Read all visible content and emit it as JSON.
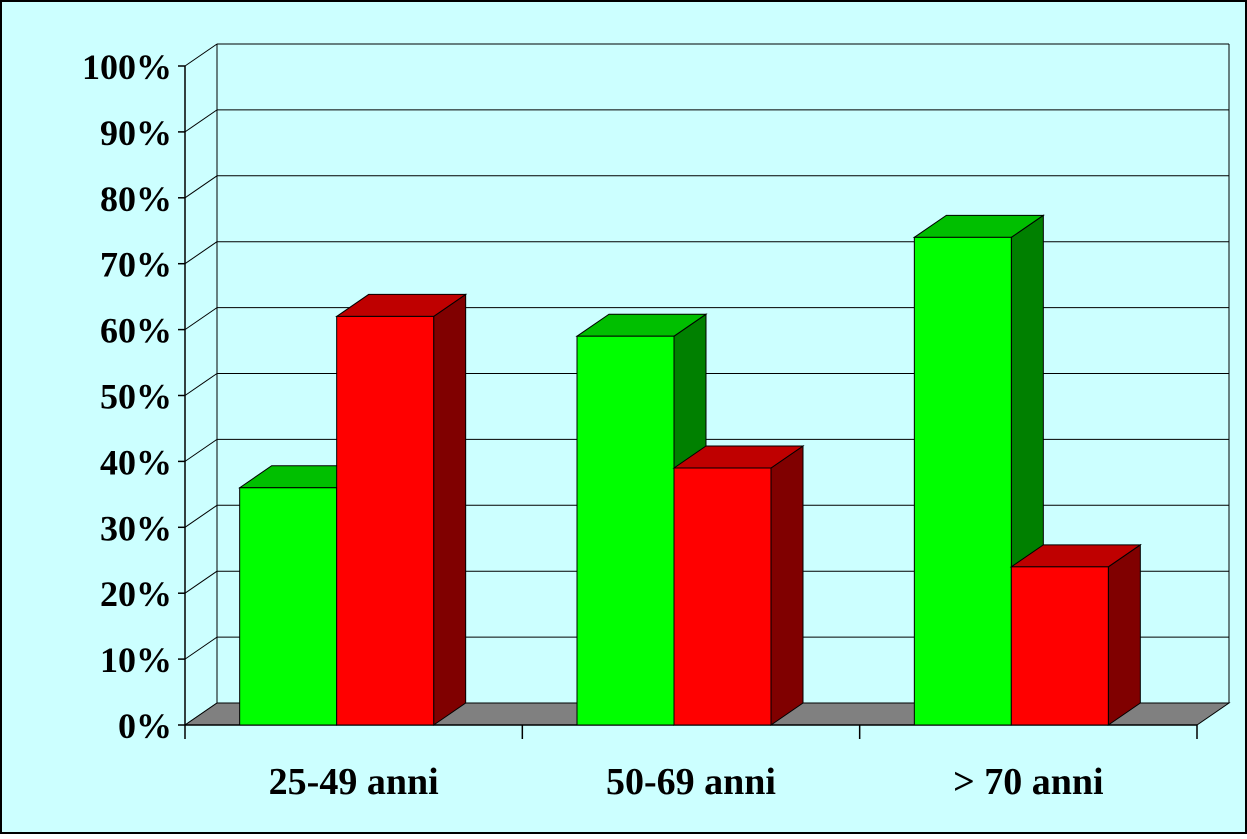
{
  "chart_data": {
    "type": "bar",
    "title": "",
    "xlabel": "",
    "ylabel": "",
    "ylim": [
      0,
      100
    ],
    "y_unit": "%",
    "y_ticks": [
      "0%",
      "10%",
      "20%",
      "30%",
      "40%",
      "50%",
      "60%",
      "70%",
      "80%",
      "90%",
      "100%"
    ],
    "categories": [
      "25-49 anni",
      "50-69 anni",
      "> 70 anni"
    ],
    "series": [
      {
        "values": [
          36,
          59,
          74
        ],
        "color": "#00ff00"
      },
      {
        "values": [
          62,
          39,
          24
        ],
        "color": "#ff0000"
      }
    ],
    "grid": true,
    "legend": "none",
    "style": "3d-column"
  },
  "colors": {
    "background": "#ccffff",
    "floor": "#808080",
    "border": "#000000"
  }
}
